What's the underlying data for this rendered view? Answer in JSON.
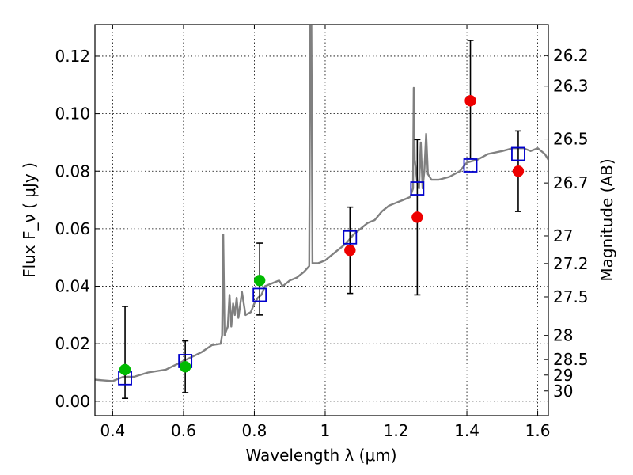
{
  "chart_data": {
    "type": "scatter",
    "xlabel": "Wavelength  λ (μm)",
    "ylabel": "Flux  F_ν  ( μJy )",
    "y2label": "Magnitude (AB)",
    "xlim": [
      0.35,
      1.63
    ],
    "ylim": [
      -0.005,
      0.131
    ],
    "grid": true,
    "x_ticks": [
      0.4,
      0.6,
      0.8,
      1.0,
      1.2,
      1.4,
      1.6
    ],
    "x_tick_labels": [
      "0.4",
      "0.6",
      "0.8",
      "1",
      "1.2",
      "1.4",
      "1.6"
    ],
    "y_ticks": [
      0.0,
      0.02,
      0.04,
      0.06,
      0.08,
      0.1,
      0.12
    ],
    "y_tick_labels": [
      "0.00",
      "0.02",
      "0.04",
      "0.06",
      "0.08",
      "0.10",
      "0.12"
    ],
    "magnitude_ticks": [
      {
        "label": "26.2",
        "flux": 0.1202
      },
      {
        "label": "26.3",
        "flux": 0.1096
      },
      {
        "label": "26.5",
        "flux": 0.0912
      },
      {
        "label": "26.7",
        "flux": 0.0759
      },
      {
        "label": "27",
        "flux": 0.0575
      },
      {
        "label": "27.2",
        "flux": 0.0479
      },
      {
        "label": "27.5",
        "flux": 0.0363
      },
      {
        "label": "28",
        "flux": 0.0229
      },
      {
        "label": "28.5",
        "flux": 0.0145
      },
      {
        "label": "29",
        "flux": 0.0091
      },
      {
        "label": "30",
        "flux": 0.0036
      }
    ],
    "series": [
      {
        "type": "line",
        "color": "#808080",
        "points": [
          [
            0.35,
            0.0075
          ],
          [
            0.4,
            0.007
          ],
          [
            0.43,
            0.0085
          ],
          [
            0.46,
            0.0085
          ],
          [
            0.5,
            0.01
          ],
          [
            0.55,
            0.011
          ],
          [
            0.6,
            0.014
          ],
          [
            0.65,
            0.017
          ],
          [
            0.68,
            0.0195
          ],
          [
            0.705,
            0.02
          ],
          [
            0.709,
            0.023
          ],
          [
            0.712,
            0.058
          ],
          [
            0.716,
            0.023
          ],
          [
            0.725,
            0.026
          ],
          [
            0.73,
            0.037
          ],
          [
            0.735,
            0.026
          ],
          [
            0.74,
            0.034
          ],
          [
            0.745,
            0.03
          ],
          [
            0.75,
            0.036
          ],
          [
            0.755,
            0.029
          ],
          [
            0.765,
            0.038
          ],
          [
            0.775,
            0.03
          ],
          [
            0.79,
            0.031
          ],
          [
            0.8,
            0.034
          ],
          [
            0.81,
            0.036
          ],
          [
            0.82,
            0.037
          ],
          [
            0.83,
            0.04
          ],
          [
            0.85,
            0.041
          ],
          [
            0.87,
            0.042
          ],
          [
            0.88,
            0.04
          ],
          [
            0.9,
            0.042
          ],
          [
            0.92,
            0.043
          ],
          [
            0.94,
            0.045
          ],
          [
            0.955,
            0.047
          ],
          [
            0.958,
            0.131
          ],
          [
            0.961,
            0.131
          ],
          [
            0.964,
            0.048
          ],
          [
            0.98,
            0.048
          ],
          [
            1.0,
            0.049
          ],
          [
            1.02,
            0.051
          ],
          [
            1.04,
            0.053
          ],
          [
            1.06,
            0.055
          ],
          [
            1.08,
            0.058
          ],
          [
            1.1,
            0.06
          ],
          [
            1.12,
            0.062
          ],
          [
            1.14,
            0.063
          ],
          [
            1.16,
            0.066
          ],
          [
            1.18,
            0.068
          ],
          [
            1.2,
            0.069
          ],
          [
            1.22,
            0.07
          ],
          [
            1.24,
            0.071
          ],
          [
            1.248,
            0.074
          ],
          [
            1.25,
            0.109
          ],
          [
            1.253,
            0.084
          ],
          [
            1.26,
            0.076
          ],
          [
            1.265,
            0.074
          ],
          [
            1.27,
            0.09
          ],
          [
            1.275,
            0.074
          ],
          [
            1.28,
            0.08
          ],
          [
            1.285,
            0.093
          ],
          [
            1.29,
            0.079
          ],
          [
            1.3,
            0.077
          ],
          [
            1.32,
            0.077
          ],
          [
            1.35,
            0.078
          ],
          [
            1.38,
            0.08
          ],
          [
            1.4,
            0.083
          ],
          [
            1.43,
            0.084
          ],
          [
            1.46,
            0.086
          ],
          [
            1.5,
            0.087
          ],
          [
            1.53,
            0.088
          ],
          [
            1.56,
            0.088
          ],
          [
            1.58,
            0.087
          ],
          [
            1.6,
            0.088
          ],
          [
            1.62,
            0.086
          ],
          [
            1.63,
            0.084
          ]
        ]
      },
      {
        "type": "scatter",
        "marker": "square",
        "color": "#0000cc",
        "x": [
          0.435,
          0.605,
          0.815,
          1.07,
          1.26,
          1.41,
          1.545
        ],
        "y": [
          0.008,
          0.014,
          0.037,
          0.057,
          0.074,
          0.082,
          0.086
        ]
      },
      {
        "type": "scatter",
        "marker": "circle",
        "color": "#00bb00",
        "x": [
          0.435,
          0.605,
          0.815
        ],
        "y": [
          0.011,
          0.012,
          0.042
        ],
        "yerr_low": [
          0.01,
          0.009,
          0.012
        ],
        "yerr_high": [
          0.022,
          0.009,
          0.013
        ]
      },
      {
        "type": "scatter",
        "marker": "circle",
        "color": "#ee0000",
        "x": [
          1.07,
          1.26,
          1.41,
          1.545
        ],
        "y": [
          0.0525,
          0.064,
          0.1045,
          0.08
        ],
        "yerr_low": [
          0.015,
          0.027,
          0.02,
          0.014
        ],
        "yerr_high": [
          0.015,
          0.027,
          0.021,
          0.014
        ]
      }
    ]
  }
}
